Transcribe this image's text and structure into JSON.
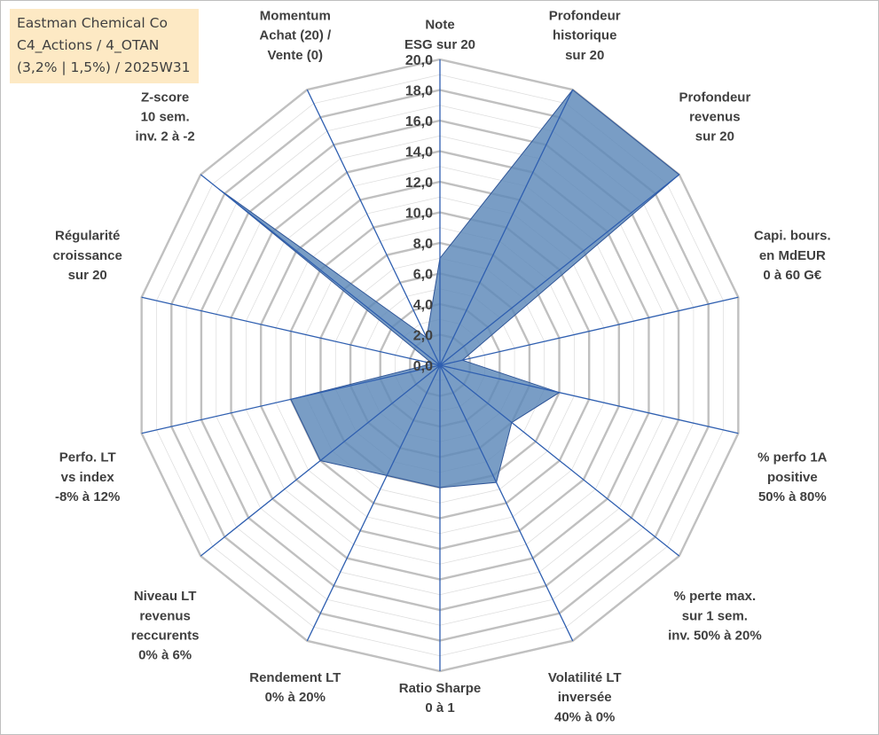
{
  "title": {
    "lines": [
      "Eastman Chemical Co",
      "C4_Actions / 4_OTAN",
      "(3,2% | 1,5%) / 2025W31"
    ]
  },
  "colors": {
    "grid": "#c0c0c0",
    "spoke": "#2f5fb0",
    "fill": "#5b87b8",
    "outline": "#2f5597",
    "title_bg": "#fde9c4",
    "text": "#404040"
  },
  "chart_data": {
    "type": "radar",
    "rmin": 0,
    "rmax": 20,
    "tick_step": 2,
    "tick_labels": [
      "0,0",
      "2,0",
      "4,0",
      "6,0",
      "8,0",
      "10,0",
      "12,0",
      "14,0",
      "16,0",
      "18,0",
      "20,0"
    ],
    "minor_grid_step": 1,
    "categories": [
      [
        "Note",
        "ESG sur 20"
      ],
      [
        "Profondeur",
        "historique",
        "sur 20"
      ],
      [
        "Profondeur",
        "revenus",
        "sur 20"
      ],
      [
        "Capi. bours.",
        "en MdEUR",
        "0 à 60 G€"
      ],
      [
        "% perfo 1A",
        "positive",
        "50% à 80%"
      ],
      [
        "% perte max.",
        "sur 1 sem.",
        "inv. 50% à 20%"
      ],
      [
        "Volatilité LT",
        "inversée",
        "40% à 0%"
      ],
      [
        "Ratio Sharpe",
        "0 à 1"
      ],
      [
        "Rendement LT",
        "0% à 20%"
      ],
      [
        "Niveau LT",
        "revenus",
        "reccurents",
        "0% à 6%"
      ],
      [
        "Perfo. LT",
        "vs index",
        "-8% à 12%"
      ],
      [
        "Régularité",
        "croissance",
        "sur 20"
      ],
      [
        "Z-score",
        "10 sem.",
        "inv. 2 à -2"
      ],
      [
        "Momentum",
        "Achat (20) /",
        "Vente (0)"
      ]
    ],
    "series": [
      {
        "values": [
          7.0,
          20.0,
          20.0,
          1.5,
          8.0,
          6.0,
          8.5,
          8.0,
          8.0,
          10.0,
          10.0,
          0.5,
          18.5,
          2.0
        ]
      }
    ]
  }
}
